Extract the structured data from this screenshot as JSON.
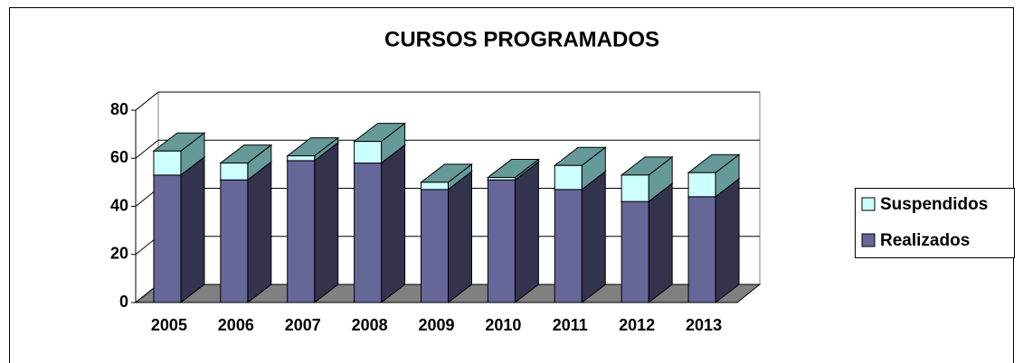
{
  "chart_data": {
    "type": "bar3d_stacked",
    "title": "CURSOS PROGRAMADOS",
    "categories": [
      "2005",
      "2006",
      "2007",
      "2008",
      "2009",
      "2010",
      "2011",
      "2012",
      "2013"
    ],
    "series": [
      {
        "name": "Realizados",
        "color": "#666699",
        "values": [
          53,
          51,
          59,
          58,
          47,
          51,
          47,
          42,
          44
        ]
      },
      {
        "name": "Suspendidos",
        "color": "#ccffff",
        "values": [
          10,
          7,
          2,
          9,
          3,
          1,
          10,
          11,
          10
        ]
      }
    ],
    "ylim": [
      0,
      80
    ],
    "yticks": [
      0,
      20,
      40,
      60,
      80
    ],
    "grid": true,
    "legend": "right"
  }
}
